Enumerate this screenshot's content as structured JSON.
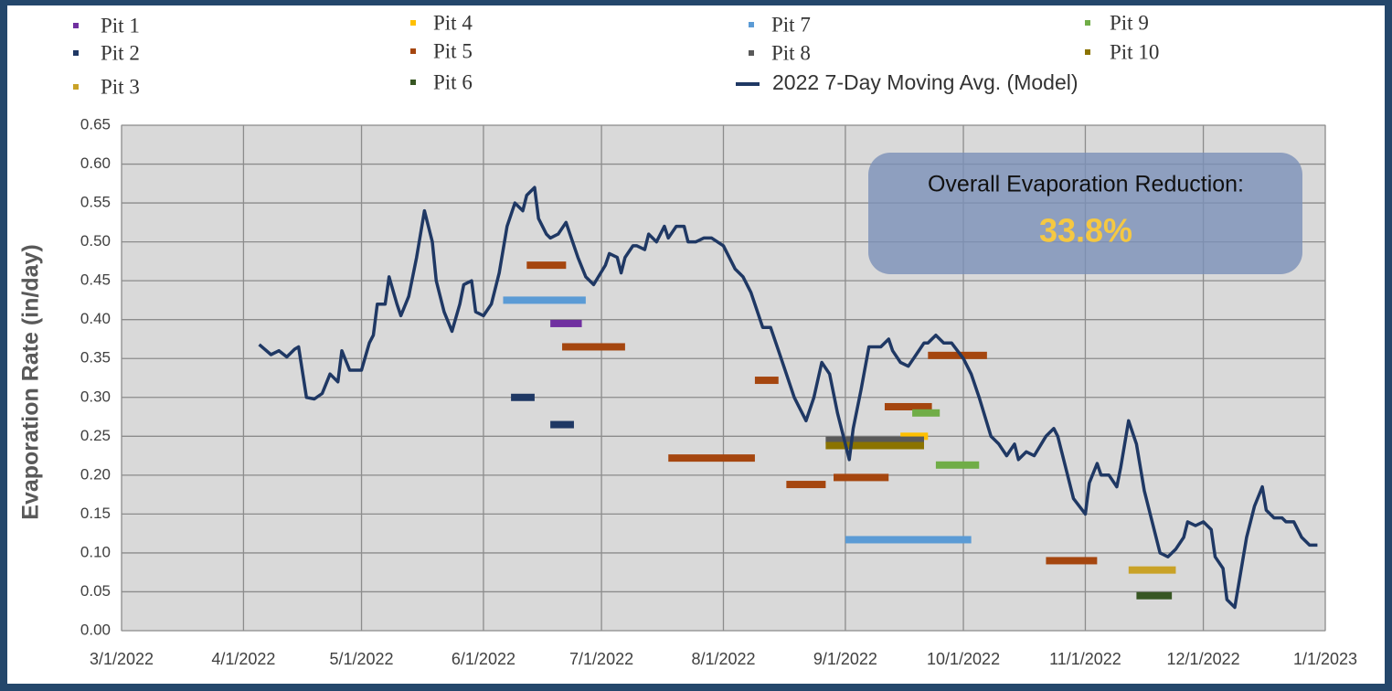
{
  "chart_data": {
    "type": "line",
    "y_label": "Evaporation Rate (in/day)",
    "annotation": {
      "title": "Overall Evaporation Reduction:",
      "value": "33.8%"
    },
    "xlim": [
      "2022-03-01",
      "2023-01-01"
    ],
    "xticks": [
      {
        "value": "2022-03-01",
        "label": "3/1/2022"
      },
      {
        "value": "2022-04-01",
        "label": "4/1/2022"
      },
      {
        "value": "2022-05-01",
        "label": "5/1/2022"
      },
      {
        "value": "2022-06-01",
        "label": "6/1/2022"
      },
      {
        "value": "2022-07-01",
        "label": "7/1/2022"
      },
      {
        "value": "2022-08-01",
        "label": "8/1/2022"
      },
      {
        "value": "2022-09-01",
        "label": "9/1/2022"
      },
      {
        "value": "2022-10-01",
        "label": "10/1/2022"
      },
      {
        "value": "2022-11-01",
        "label": "11/1/2022"
      },
      {
        "value": "2022-12-01",
        "label": "12/1/2022"
      },
      {
        "value": "2023-01-01",
        "label": "1/1/2023"
      }
    ],
    "ylim": [
      0,
      0.65
    ],
    "yticks": [
      {
        "value": 0,
        "label": "0.00"
      },
      0.05,
      {
        "value": 0.1,
        "label": "0.10"
      },
      0.15,
      {
        "value": 0.2,
        "label": "0.20"
      },
      0.25,
      {
        "value": 0.3,
        "label": "0.30"
      },
      0.35,
      {
        "value": 0.4,
        "label": "0.40"
      },
      0.45,
      {
        "value": 0.5,
        "label": "0.50"
      },
      0.55,
      {
        "value": 0.6,
        "label": "0.60"
      },
      0.65
    ],
    "grid": true,
    "series": [
      {
        "name": "Pit 1",
        "color": "#7030a0",
        "segments": [
          {
            "x": [
              "2022-06-18",
              "2022-06-26"
            ],
            "value": 0.395
          }
        ]
      },
      {
        "name": "Pit 2",
        "color": "#1f3864",
        "segments": [
          {
            "x": [
              "2022-06-08",
              "2022-06-14"
            ],
            "value": 0.3
          },
          {
            "x": [
              "2022-06-18",
              "2022-06-24"
            ],
            "value": 0.265
          }
        ]
      },
      {
        "name": "Pit 3",
        "color": "#c9a227",
        "segments": [
          {
            "x": [
              "2022-11-12",
              "2022-11-24"
            ],
            "value": 0.078
          }
        ]
      },
      {
        "name": "Pit 4",
        "color": "#ffc000",
        "segments": [
          {
            "x": [
              "2022-09-15",
              "2022-09-22"
            ],
            "value": 0.25
          }
        ]
      },
      {
        "name": "Pit 5",
        "color": "#a5460f",
        "segments": [
          {
            "x": [
              "2022-06-12",
              "2022-06-22"
            ],
            "value": 0.47
          },
          {
            "x": [
              "2022-06-21",
              "2022-07-07"
            ],
            "value": 0.365
          },
          {
            "x": [
              "2022-07-18",
              "2022-08-09"
            ],
            "value": 0.222
          },
          {
            "x": [
              "2022-08-09",
              "2022-08-15"
            ],
            "value": 0.322
          },
          {
            "x": [
              "2022-08-17",
              "2022-08-27"
            ],
            "value": 0.188
          },
          {
            "x": [
              "2022-08-29",
              "2022-09-12"
            ],
            "value": 0.197
          },
          {
            "x": [
              "2022-09-11",
              "2022-09-23"
            ],
            "value": 0.288
          },
          {
            "x": [
              "2022-09-22",
              "2022-10-07"
            ],
            "value": 0.354
          },
          {
            "x": [
              "2022-10-22",
              "2022-11-04"
            ],
            "value": 0.09
          }
        ]
      },
      {
        "name": "Pit 6",
        "color": "#375623",
        "segments": [
          {
            "x": [
              "2022-11-14",
              "2022-11-23"
            ],
            "value": 0.045
          }
        ]
      },
      {
        "name": "Pit 7",
        "color": "#5b9bd5",
        "segments": [
          {
            "x": [
              "2022-06-06",
              "2022-06-27"
            ],
            "value": 0.425
          },
          {
            "x": [
              "2022-09-01",
              "2022-10-03"
            ],
            "value": 0.117
          }
        ]
      },
      {
        "name": "Pit 8",
        "color": "#595959",
        "segments": [
          {
            "x": [
              "2022-08-27",
              "2022-09-21"
            ],
            "value": 0.245
          }
        ]
      },
      {
        "name": "Pit 9",
        "color": "#70ad47",
        "segments": [
          {
            "x": [
              "2022-09-18",
              "2022-09-25"
            ],
            "value": 0.28
          },
          {
            "x": [
              "2022-09-24",
              "2022-10-05"
            ],
            "value": 0.213
          }
        ]
      },
      {
        "name": "Pit 10",
        "color": "#8b7300",
        "segments": [
          {
            "x": [
              "2022-08-27",
              "2022-09-21"
            ],
            "value": 0.238
          }
        ]
      },
      {
        "name": "2022 7-Day Moving Avg. (Model)",
        "color": "#1f3864",
        "x": [
          "2022-04-05",
          "2022-04-08",
          "2022-04-10",
          "2022-04-12",
          "2022-04-14",
          "2022-04-15",
          "2022-04-17",
          "2022-04-19",
          "2022-04-21",
          "2022-04-23",
          "2022-04-25",
          "2022-04-26",
          "2022-04-28",
          "2022-05-01",
          "2022-05-03",
          "2022-05-04",
          "2022-05-05",
          "2022-05-07",
          "2022-05-08",
          "2022-05-10",
          "2022-05-11",
          "2022-05-13",
          "2022-05-15",
          "2022-05-17",
          "2022-05-19",
          "2022-05-20",
          "2022-05-22",
          "2022-05-24",
          "2022-05-26",
          "2022-05-27",
          "2022-05-29",
          "2022-05-30",
          "2022-06-01",
          "2022-06-03",
          "2022-06-05",
          "2022-06-07",
          "2022-06-09",
          "2022-06-11",
          "2022-06-12",
          "2022-06-14",
          "2022-06-15",
          "2022-06-17",
          "2022-06-18",
          "2022-06-20",
          "2022-06-22",
          "2022-06-23",
          "2022-06-25",
          "2022-06-27",
          "2022-06-29",
          "2022-07-02",
          "2022-07-03",
          "2022-07-05",
          "2022-07-06",
          "2022-07-07",
          "2022-07-09",
          "2022-07-10",
          "2022-07-12",
          "2022-07-13",
          "2022-07-15",
          "2022-07-17",
          "2022-07-18",
          "2022-07-20",
          "2022-07-22",
          "2022-07-23",
          "2022-07-25",
          "2022-07-27",
          "2022-07-29",
          "2022-08-01",
          "2022-08-02",
          "2022-08-04",
          "2022-08-06",
          "2022-08-08",
          "2022-08-09",
          "2022-08-11",
          "2022-08-13",
          "2022-08-15",
          "2022-08-17",
          "2022-08-19",
          "2022-08-20",
          "2022-08-22",
          "2022-08-24",
          "2022-08-26",
          "2022-08-28",
          "2022-08-30",
          "2022-09-02",
          "2022-09-03",
          "2022-09-05",
          "2022-09-07",
          "2022-09-10",
          "2022-09-12",
          "2022-09-13",
          "2022-09-15",
          "2022-09-17",
          "2022-09-19",
          "2022-09-21",
          "2022-09-22",
          "2022-09-24",
          "2022-09-26",
          "2022-09-28",
          "2022-10-01",
          "2022-10-03",
          "2022-10-05",
          "2022-10-08",
          "2022-10-10",
          "2022-10-12",
          "2022-10-14",
          "2022-10-15",
          "2022-10-17",
          "2022-10-19",
          "2022-10-22",
          "2022-10-24",
          "2022-10-25",
          "2022-10-27",
          "2022-10-29",
          "2022-11-01",
          "2022-11-02",
          "2022-11-04",
          "2022-11-05",
          "2022-11-07",
          "2022-11-09",
          "2022-11-10",
          "2022-11-12",
          "2022-11-14",
          "2022-11-16",
          "2022-11-18",
          "2022-11-20",
          "2022-11-22",
          "2022-11-24",
          "2022-11-26",
          "2022-11-27",
          "2022-11-29",
          "2022-12-01",
          "2022-12-03",
          "2022-12-04",
          "2022-12-06",
          "2022-12-07",
          "2022-12-09",
          "2022-12-10",
          "2022-12-12",
          "2022-12-14",
          "2022-12-16",
          "2022-12-17",
          "2022-12-19",
          "2022-12-21",
          "2022-12-22",
          "2022-12-24",
          "2022-12-26",
          "2022-12-28",
          "2022-12-30"
        ],
        "values": [
          0.368,
          0.355,
          0.36,
          0.352,
          0.362,
          0.365,
          0.3,
          0.298,
          0.305,
          0.33,
          0.32,
          0.36,
          0.335,
          0.335,
          0.37,
          0.38,
          0.42,
          0.42,
          0.455,
          0.42,
          0.405,
          0.43,
          0.48,
          0.54,
          0.5,
          0.45,
          0.41,
          0.385,
          0.42,
          0.445,
          0.45,
          0.41,
          0.405,
          0.42,
          0.46,
          0.52,
          0.55,
          0.54,
          0.56,
          0.57,
          0.53,
          0.51,
          0.505,
          0.51,
          0.525,
          0.51,
          0.48,
          0.455,
          0.445,
          0.47,
          0.485,
          0.48,
          0.46,
          0.48,
          0.495,
          0.495,
          0.49,
          0.51,
          0.5,
          0.52,
          0.505,
          0.52,
          0.52,
          0.5,
          0.5,
          0.505,
          0.505,
          0.495,
          0.485,
          0.465,
          0.455,
          0.435,
          0.42,
          0.39,
          0.39,
          0.36,
          0.33,
          0.3,
          0.29,
          0.27,
          0.3,
          0.345,
          0.33,
          0.28,
          0.22,
          0.26,
          0.31,
          0.365,
          0.365,
          0.375,
          0.36,
          0.345,
          0.34,
          0.355,
          0.37,
          0.37,
          0.38,
          0.37,
          0.37,
          0.35,
          0.33,
          0.3,
          0.25,
          0.24,
          0.225,
          0.24,
          0.22,
          0.23,
          0.225,
          0.25,
          0.26,
          0.25,
          0.21,
          0.17,
          0.15,
          0.19,
          0.215,
          0.2,
          0.2,
          0.185,
          0.21,
          0.27,
          0.24,
          0.18,
          0.14,
          0.1,
          0.095,
          0.105,
          0.12,
          0.14,
          0.135,
          0.14,
          0.13,
          0.095,
          0.08,
          0.04,
          0.03,
          0.06,
          0.12,
          0.16,
          0.185,
          0.155,
          0.145,
          0.145,
          0.14,
          0.14,
          0.12,
          0.11,
          0.11
        ]
      }
    ]
  }
}
